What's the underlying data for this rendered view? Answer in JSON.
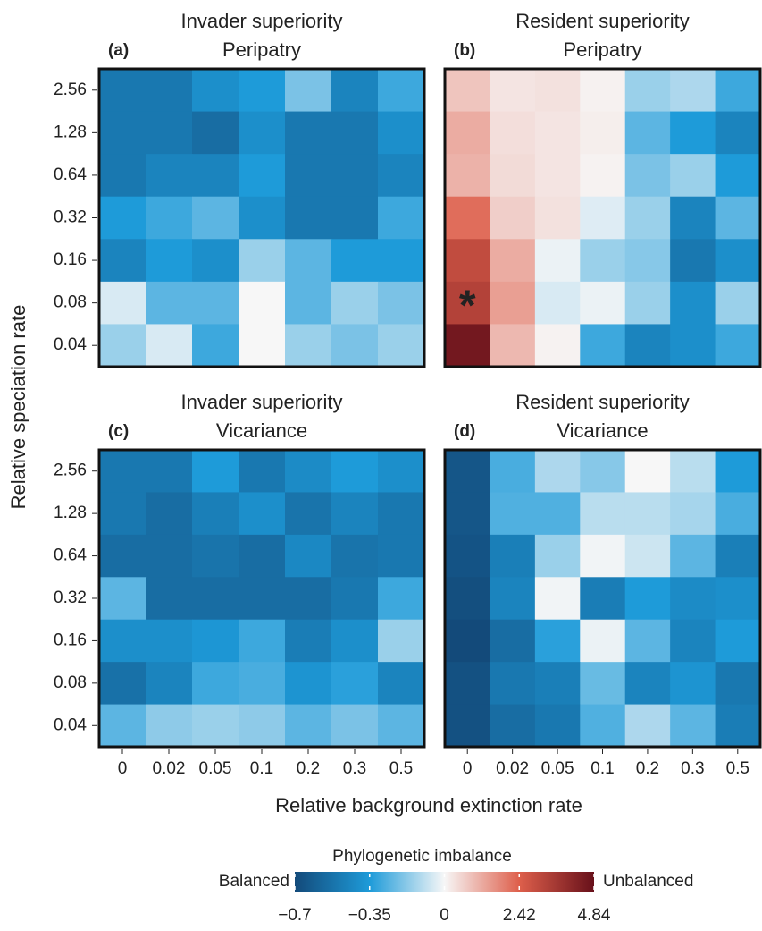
{
  "chart_data": [
    {
      "type": "heatmap",
      "panel_label": "(a)",
      "title": "Invader superiority",
      "subtitle": "Peripatry",
      "y_categories": [
        "2.56",
        "1.28",
        "0.64",
        "0.32",
        "0.16",
        "0.08",
        "0.04"
      ],
      "values": [
        [
          -0.5,
          -0.5,
          -0.4,
          -0.35,
          -0.2,
          -0.45,
          -0.3
        ],
        [
          -0.5,
          -0.5,
          -0.55,
          -0.4,
          -0.5,
          -0.5,
          -0.4
        ],
        [
          -0.5,
          -0.45,
          -0.45,
          -0.35,
          -0.5,
          -0.5,
          -0.45
        ],
        [
          -0.35,
          -0.3,
          -0.25,
          -0.4,
          -0.5,
          -0.5,
          -0.3
        ],
        [
          -0.45,
          -0.35,
          -0.4,
          -0.15,
          -0.25,
          -0.35,
          -0.35
        ],
        [
          -0.05,
          -0.25,
          -0.25,
          0,
          -0.25,
          -0.15,
          -0.2
        ],
        [
          -0.15,
          -0.05,
          -0.3,
          0,
          -0.15,
          -0.2,
          -0.15
        ]
      ]
    },
    {
      "type": "heatmap",
      "panel_label": "(b)",
      "title": "Resident superiority",
      "subtitle": "Peripatry",
      "annotation": "*",
      "values": [
        [
          0.8,
          0.3,
          0.35,
          0.1,
          -0.15,
          -0.12,
          -0.3
        ],
        [
          1.2,
          0.4,
          0.3,
          0.15,
          -0.25,
          -0.35,
          -0.45
        ],
        [
          1.1,
          0.45,
          0.3,
          0.08,
          -0.2,
          -0.15,
          -0.35
        ],
        [
          2.2,
          0.65,
          0.35,
          -0.04,
          -0.15,
          -0.45,
          -0.25
        ],
        [
          3.0,
          1.2,
          -0.02,
          -0.15,
          -0.18,
          -0.5,
          -0.4
        ],
        [
          3.3,
          1.4,
          -0.05,
          -0.02,
          -0.15,
          -0.4,
          -0.15
        ],
        [
          4.6,
          1.0,
          0.08,
          -0.3,
          -0.45,
          -0.4,
          -0.3
        ]
      ]
    },
    {
      "type": "heatmap",
      "panel_label": "(c)",
      "title": "Invader superiority",
      "subtitle": "Vicariance",
      "y_categories": [
        "2.56",
        "1.28",
        "0.64",
        "0.32",
        "0.16",
        "0.08",
        "0.04"
      ],
      "x_categories": [
        "0",
        "0.02",
        "0.05",
        "0.1",
        "0.2",
        "0.3",
        "0.5"
      ],
      "values": [
        [
          -0.5,
          -0.5,
          -0.35,
          -0.5,
          -0.42,
          -0.35,
          -0.4
        ],
        [
          -0.5,
          -0.55,
          -0.47,
          -0.4,
          -0.52,
          -0.45,
          -0.5
        ],
        [
          -0.55,
          -0.55,
          -0.52,
          -0.55,
          -0.43,
          -0.52,
          -0.5
        ],
        [
          -0.25,
          -0.55,
          -0.55,
          -0.55,
          -0.55,
          -0.5,
          -0.3
        ],
        [
          -0.4,
          -0.4,
          -0.37,
          -0.3,
          -0.48,
          -0.4,
          -0.15
        ],
        [
          -0.53,
          -0.45,
          -0.3,
          -0.28,
          -0.38,
          -0.33,
          -0.45
        ],
        [
          -0.25,
          -0.17,
          -0.15,
          -0.17,
          -0.25,
          -0.2,
          -0.25
        ]
      ]
    },
    {
      "type": "heatmap",
      "panel_label": "(d)",
      "title": "Resident superiority",
      "subtitle": "Vicariance",
      "x_categories": [
        "0",
        "0.02",
        "0.05",
        "0.1",
        "0.2",
        "0.3",
        "0.5"
      ],
      "values": [
        [
          -0.65,
          -0.28,
          -0.12,
          -0.18,
          0,
          -0.1,
          -0.35
        ],
        [
          -0.65,
          -0.27,
          -0.27,
          -0.1,
          -0.1,
          -0.13,
          -0.28
        ],
        [
          -0.66,
          -0.47,
          -0.15,
          -0.01,
          -0.07,
          -0.25,
          -0.47
        ],
        [
          -0.68,
          -0.45,
          -0.01,
          -0.48,
          -0.35,
          -0.42,
          -0.4
        ],
        [
          -0.7,
          -0.55,
          -0.33,
          -0.02,
          -0.25,
          -0.45,
          -0.35
        ],
        [
          -0.67,
          -0.5,
          -0.47,
          -0.23,
          -0.45,
          -0.38,
          -0.5
        ],
        [
          -0.67,
          -0.55,
          -0.5,
          -0.27,
          -0.12,
          -0.25,
          -0.48
        ]
      ]
    }
  ],
  "y_label": "Relative speciation rate",
  "x_label": "Relative background extinction rate",
  "colorbar": {
    "title": "Phylogenetic imbalance",
    "low_label": "Balanced",
    "high_label": "Unbalanced",
    "lim": [
      -0.7,
      4.84
    ],
    "colors": [
      "#134a7a",
      "#1e9bd9",
      "#f7f7f7",
      "#de5f4b",
      "#67101a"
    ],
    "ticks": [
      {
        "value": -0.7,
        "label": "−0.7"
      },
      {
        "value": -0.35,
        "label": "−0.35"
      },
      0,
      2.42,
      4.84
    ]
  }
}
